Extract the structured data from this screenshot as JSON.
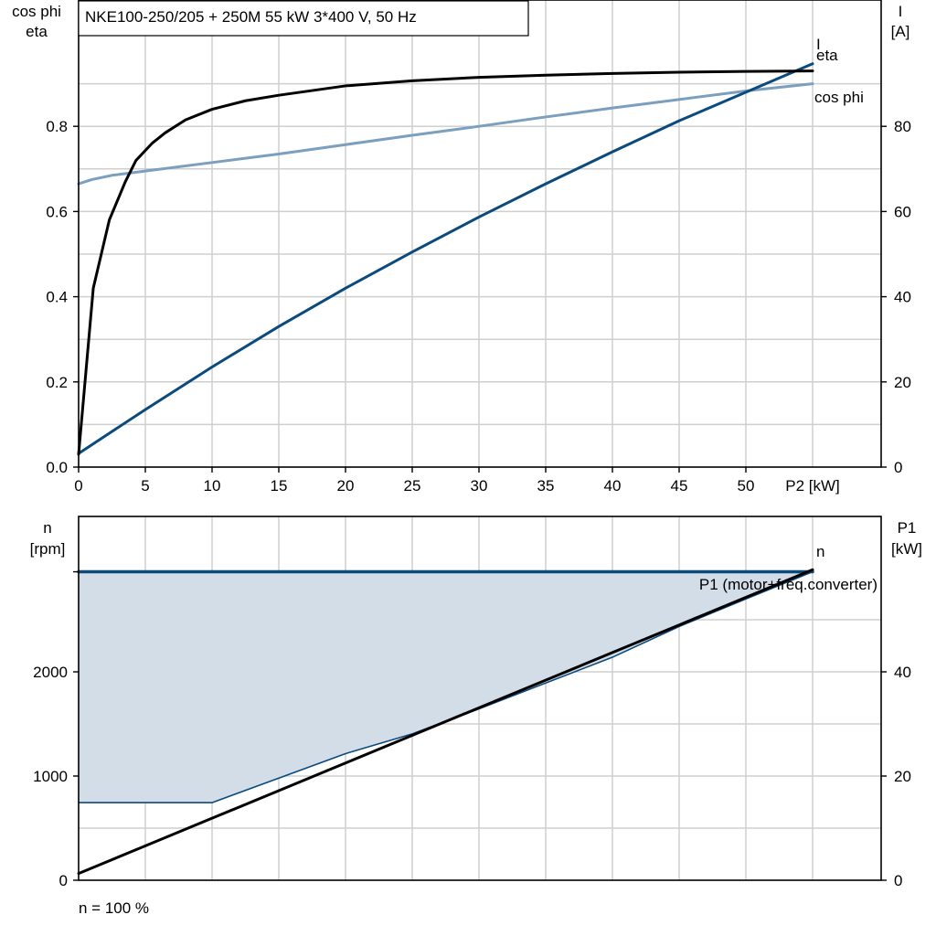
{
  "title": "NKE100-250/205 + 250M   55 kW   3*400 V, 50 Hz",
  "footer_note": "n = 100 %",
  "colors": {
    "eta": "#000000",
    "current": "#0b4a7d",
    "cosphi": "#7b9fbe",
    "speed": "#0b4a7d",
    "p1": "#000000",
    "area_fill": "#d3dde8",
    "area_edge": "#0b4a7d",
    "grid": "#cfcfcf"
  },
  "chart_data": [
    {
      "type": "line",
      "xlabel": "P2 [kW]",
      "ylabel_left": [
        "cos phi",
        "eta"
      ],
      "ylabel_right": [
        "I",
        "[A]"
      ],
      "xlim": [
        0,
        60
      ],
      "ylim_left": [
        0,
        1.0
      ],
      "ylim_right": [
        0,
        100
      ],
      "grid": true,
      "x_ticks": [
        0,
        5,
        10,
        15,
        20,
        25,
        30,
        35,
        40,
        45,
        50
      ],
      "x_tick_labels": [
        "0",
        "5",
        "10",
        "15",
        "20",
        "25",
        "30",
        "35",
        "40",
        "45",
        "50"
      ],
      "y_left_ticks": [
        0.0,
        0.2,
        0.4,
        0.6,
        0.8
      ],
      "y_left_tick_labels": [
        "0.0",
        "0.2",
        "0.4",
        "0.6",
        "0.8"
      ],
      "y_right_ticks": [
        0,
        20,
        40,
        60,
        80
      ],
      "y_right_tick_labels": [
        "0",
        "20",
        "40",
        "60",
        "80"
      ],
      "series": [
        {
          "name": "eta",
          "axis": "left",
          "x": [
            0,
            1.1,
            2.3,
            3.5,
            4.3,
            5.5,
            6.5,
            8,
            10,
            12.5,
            15,
            20,
            25,
            30,
            35,
            40,
            45,
            50,
            55
          ],
          "y": [
            0.03,
            0.42,
            0.58,
            0.67,
            0.72,
            0.76,
            0.785,
            0.815,
            0.84,
            0.86,
            0.873,
            0.895,
            0.907,
            0.915,
            0.92,
            0.924,
            0.927,
            0.929,
            0.93
          ]
        },
        {
          "name": "cos phi",
          "axis": "left",
          "x": [
            0,
            1,
            2.5,
            5,
            10,
            15,
            20,
            25,
            30,
            35,
            40,
            45,
            50,
            55
          ],
          "y": [
            0.665,
            0.675,
            0.685,
            0.695,
            0.715,
            0.735,
            0.757,
            0.779,
            0.8,
            0.822,
            0.843,
            0.863,
            0.883,
            0.9
          ]
        },
        {
          "name": "I",
          "axis": "right",
          "x": [
            0,
            5,
            10,
            15,
            20,
            25,
            30,
            35,
            40,
            45,
            50,
            55
          ],
          "y": [
            3.2,
            13.5,
            23.5,
            33,
            42,
            50.5,
            58.7,
            66.5,
            74,
            81.3,
            88,
            94.7
          ]
        }
      ]
    },
    {
      "type": "line",
      "xlim": [
        0,
        60
      ],
      "ylabel_left": [
        "n",
        "[rpm]"
      ],
      "ylabel_right": [
        "P1",
        "[kW]"
      ],
      "ylim_left": [
        0,
        3000
      ],
      "ylim_right": [
        0,
        60
      ],
      "grid": true,
      "y_left_ticks": [
        0,
        1000,
        2000
      ],
      "y_left_tick_labels": [
        "0",
        "1000",
        "2000"
      ],
      "y_right_ticks": [
        0,
        20,
        40
      ],
      "y_right_tick_labels": [
        "0",
        "20",
        "40"
      ],
      "series": [
        {
          "name": "n",
          "axis": "left",
          "x": [
            0,
            55
          ],
          "y": [
            2960,
            2960
          ]
        },
        {
          "name": "P1 (motor+freq.converter)",
          "axis": "right",
          "x": [
            0,
            5,
            10,
            15,
            20,
            25,
            30,
            35,
            40,
            45,
            50,
            55
          ],
          "y": [
            1.3,
            6.6,
            11.9,
            17.2,
            22.5,
            27.8,
            33.1,
            38.4,
            43.7,
            49,
            54.3,
            59.6
          ]
        }
      ],
      "operating_area": {
        "upper_x": [
          0,
          55
        ],
        "upper_y": [
          2960,
          2960
        ],
        "lower_x": [
          0,
          10,
          20,
          25,
          30,
          40,
          45,
          50,
          55
        ],
        "lower_y": [
          745,
          745,
          1215,
          1405,
          1645,
          2140,
          2435,
          2700,
          2960
        ]
      }
    }
  ]
}
